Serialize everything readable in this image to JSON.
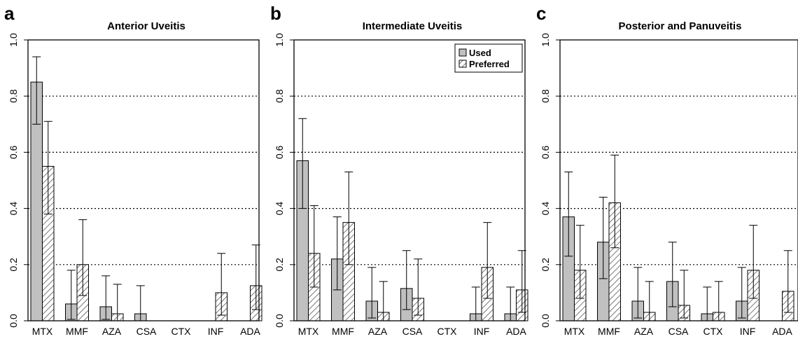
{
  "chart_data": [
    {
      "type": "bar",
      "panel_letter": "a",
      "title": "Anterior Uveitis",
      "categories": [
        "MTX",
        "MMF",
        "AZA",
        "CSA",
        "CTX",
        "INF",
        "ADA"
      ],
      "yticks": [
        "0.0",
        "0.2",
        "0.4",
        "0.6",
        "0.8",
        "1.0"
      ],
      "ylim": [
        0,
        1
      ],
      "grid": "dotted horizontal at 0.2, 0.4, 0.6, 0.8",
      "series": [
        {
          "name": "Used",
          "values": [
            0.85,
            0.06,
            0.05,
            0.025,
            0,
            0,
            0
          ],
          "ci_low": [
            0.7,
            0.005,
            0.005,
            0.0,
            0,
            0,
            0
          ],
          "ci_high": [
            0.94,
            0.18,
            0.16,
            0.125,
            0,
            0,
            0
          ]
        },
        {
          "name": "Preferred",
          "values": [
            0.55,
            0.2,
            0.025,
            0,
            0,
            0.1,
            0.125
          ],
          "ci_low": [
            0.38,
            0.09,
            0.0,
            0,
            0,
            0.02,
            0.04
          ],
          "ci_high": [
            0.71,
            0.36,
            0.13,
            0,
            0,
            0.24,
            0.27
          ]
        }
      ]
    },
    {
      "type": "bar",
      "panel_letter": "b",
      "title": "Intermediate Uveitis",
      "categories": [
        "MTX",
        "MMF",
        "AZA",
        "CSA",
        "CTX",
        "INF",
        "ADA"
      ],
      "yticks": [
        "0.0",
        "0.2",
        "0.4",
        "0.6",
        "0.8",
        "1.0"
      ],
      "ylim": [
        0,
        1
      ],
      "grid": "dotted horizontal at 0.2, 0.4, 0.6, 0.8",
      "legend": {
        "position": "top-right",
        "entries": [
          "Used",
          "Preferred"
        ]
      },
      "series": [
        {
          "name": "Used",
          "values": [
            0.57,
            0.22,
            0.07,
            0.115,
            0,
            0.025,
            0.025
          ],
          "ci_low": [
            0.4,
            0.11,
            0.01,
            0.04,
            0,
            0.0,
            0.0
          ],
          "ci_high": [
            0.72,
            0.37,
            0.19,
            0.25,
            0,
            0.12,
            0.12
          ]
        },
        {
          "name": "Preferred",
          "values": [
            0.24,
            0.35,
            0.03,
            0.08,
            0,
            0.19,
            0.11
          ],
          "ci_low": [
            0.12,
            0.2,
            0.0,
            0.02,
            0,
            0.08,
            0.03
          ],
          "ci_high": [
            0.41,
            0.53,
            0.14,
            0.22,
            0,
            0.35,
            0.25
          ]
        }
      ]
    },
    {
      "type": "bar",
      "panel_letter": "c",
      "title": "Posterior and Panuveitis",
      "categories": [
        "MTX",
        "MMF",
        "AZA",
        "CSA",
        "CTX",
        "INF",
        "ADA"
      ],
      "yticks": [
        "0.0",
        "0.2",
        "0.4",
        "0.6",
        "0.8",
        "1.0"
      ],
      "ylim": [
        0,
        1
      ],
      "grid": "dotted horizontal at 0.2, 0.4, 0.6, 0.8",
      "series": [
        {
          "name": "Used",
          "values": [
            0.37,
            0.28,
            0.07,
            0.14,
            0.025,
            0.07,
            0
          ],
          "ci_low": [
            0.23,
            0.15,
            0.01,
            0.05,
            0.0,
            0.01,
            0
          ],
          "ci_high": [
            0.53,
            0.44,
            0.19,
            0.28,
            0.12,
            0.19,
            0
          ]
        },
        {
          "name": "Preferred",
          "values": [
            0.18,
            0.42,
            0.03,
            0.055,
            0.03,
            0.18,
            0.105
          ],
          "ci_low": [
            0.08,
            0.26,
            0.0,
            0.01,
            0.0,
            0.08,
            0.03
          ],
          "ci_high": [
            0.34,
            0.59,
            0.14,
            0.18,
            0.14,
            0.34,
            0.25
          ]
        }
      ]
    }
  ],
  "style": {
    "used_fill": "#c0c0c0",
    "preferred_fill": "#ffffff",
    "hatch_color": "#555555",
    "grid_color": "#000000"
  }
}
